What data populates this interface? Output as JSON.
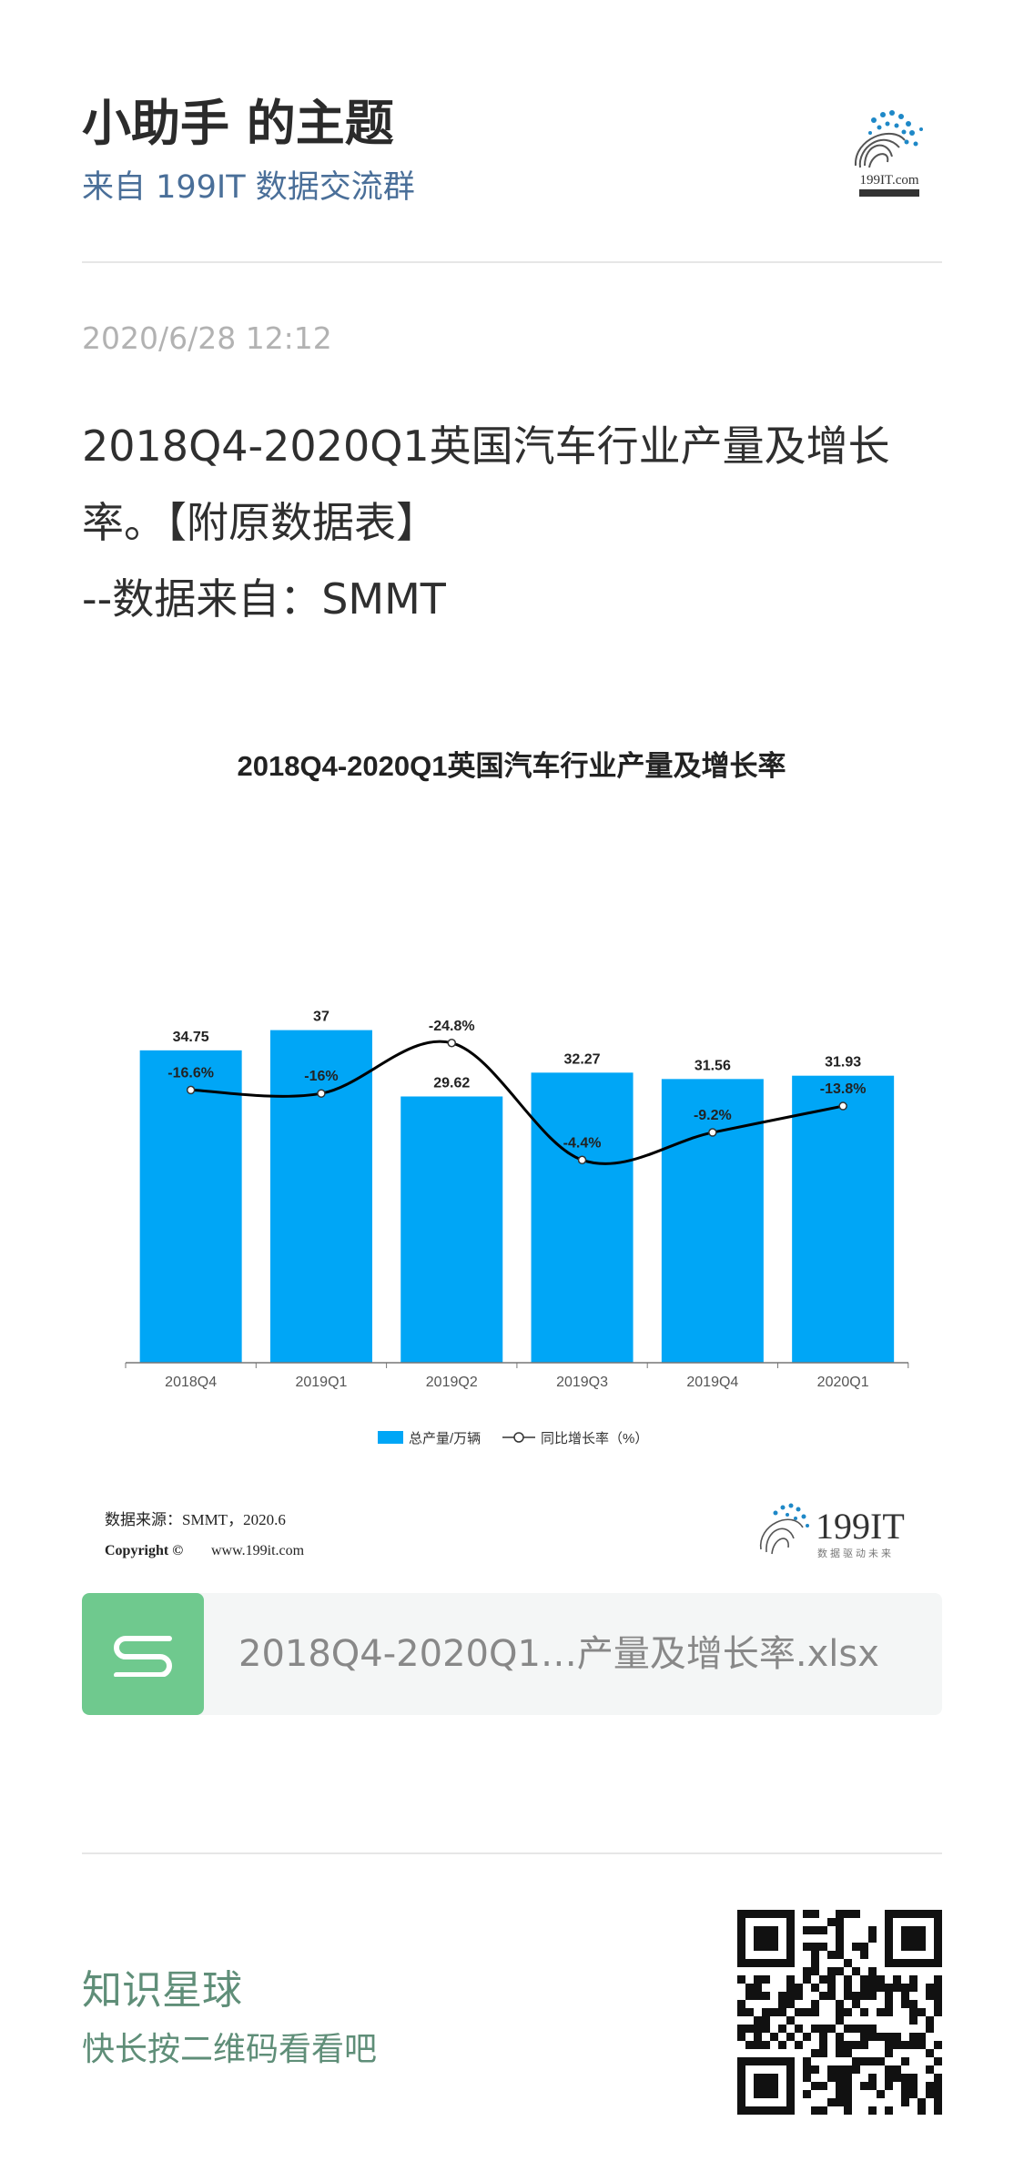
{
  "header": {
    "group_title": "小助手 的主题",
    "group_source": "来自 199IT 数据交流群",
    "logo_text": "199IT.com"
  },
  "post": {
    "timestamp": "2020/6/28 12:12",
    "line1": "2018Q4-2020Q1英国汽车行业产量及增长",
    "line2": "率。【附原数据表】",
    "line3": "--数据来自：SMMT"
  },
  "chart_data": {
    "type": "bar",
    "title": "2018Q4-2020Q1英国汽车行业产量及增长率",
    "categories": [
      "2018Q4",
      "2019Q1",
      "2019Q2",
      "2019Q3",
      "2019Q4",
      "2020Q1"
    ],
    "series": [
      {
        "name": "总产量/万辆",
        "type": "bar",
        "values": [
          34.75,
          37,
          29.62,
          32.27,
          31.56,
          31.93
        ],
        "labels": [
          "34.75",
          "37",
          "29.62",
          "32.27",
          "31.56",
          "31.93"
        ],
        "color": "#00a6f6"
      },
      {
        "name": "同比增长率（%）",
        "type": "line",
        "values": [
          -16.6,
          -16,
          -24.8,
          -4.4,
          -9.2,
          -13.8
        ],
        "labels": [
          "-16.6%",
          "-16%",
          "-24.8%",
          "-4.4%",
          "-9.2%",
          "-13.8%"
        ],
        "color": "#000000"
      }
    ],
    "ylim_bar": [
      0,
      40
    ],
    "ylim_line": [
      -30,
      0
    ],
    "grid": false,
    "legend_position": "bottom",
    "source_line": "数据来源：SMMT，2020.6",
    "copyright_label": "Copyright ©",
    "copyright_site": "www.199it.com",
    "brand": "199IT",
    "brand_sub": "数据驱动未来"
  },
  "attachment": {
    "file_name": "2018Q4-2020Q1…产量及增长率.xlsx",
    "icon": "spreadsheet-icon",
    "icon_color": "#6fc98e"
  },
  "footer": {
    "title": "知识星球",
    "subtitle": "快长按二维码看看吧"
  },
  "colors": {
    "accent_blue": "#4a6f99",
    "footer_green": "#5f8e78",
    "bar_blue": "#00a6f6"
  }
}
